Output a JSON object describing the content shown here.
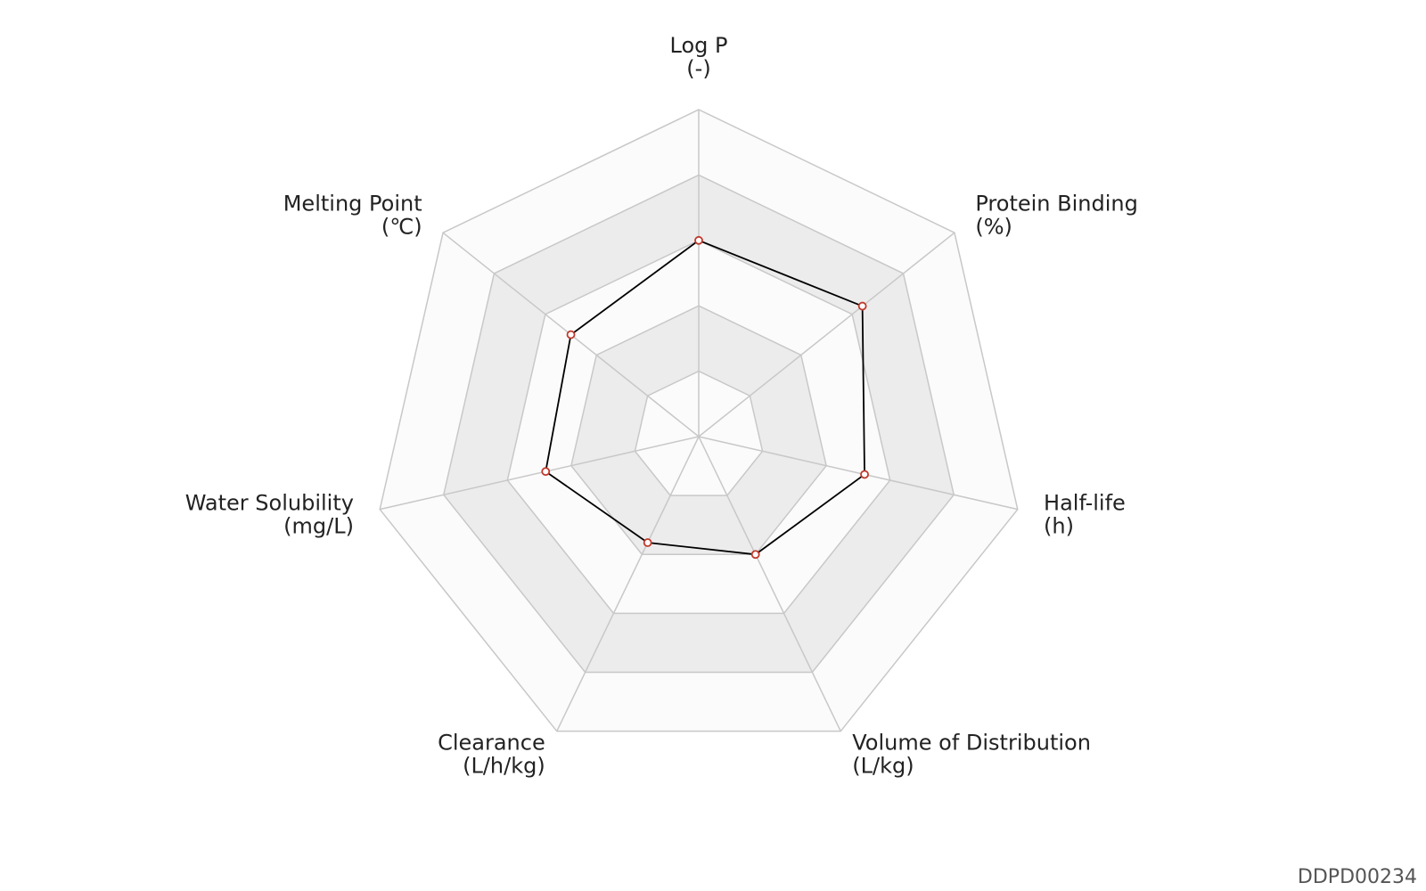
{
  "chart_data": {
    "type": "radar",
    "categories": [
      "Log P",
      "Protein Binding",
      "Half-life",
      "Volume of Distribution",
      "Clearance",
      "Water Solubility",
      "Melting Point"
    ],
    "units": [
      "(-)",
      "(%)",
      "(h)",
      "(L/kg)",
      "(L/h/kg)",
      "(mg/L)",
      "(℃)"
    ],
    "series": [
      {
        "color": "#000000",
        "marker_color": "#c0392b",
        "values": [
          3.0,
          3.2,
          2.6,
          2.0,
          1.8,
          2.4,
          2.5
        ]
      }
    ],
    "ylim": [
      0,
      5
    ],
    "yticks": [
      1,
      2,
      3,
      4,
      5
    ],
    "grid": true
  },
  "watermark": "DDPD00234"
}
